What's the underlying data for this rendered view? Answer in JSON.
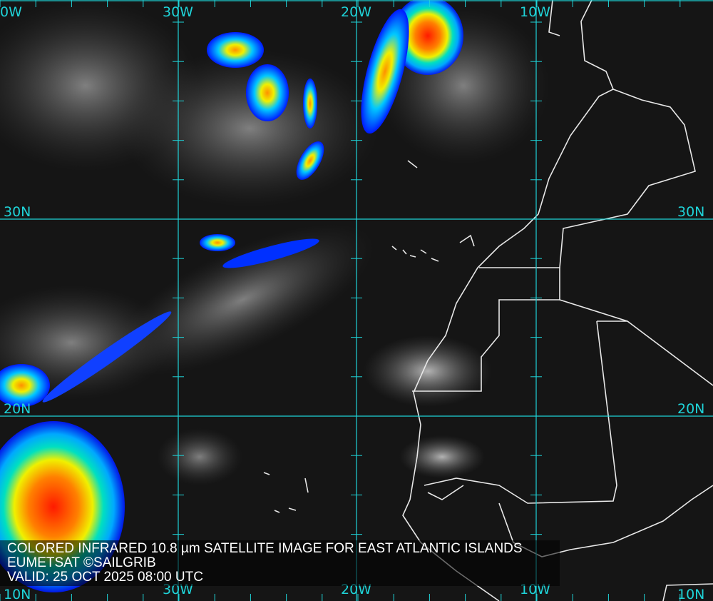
{
  "caption": {
    "title": "COLORED INFRARED 10.8 µm SATELLITE IMAGE FOR EAST ATLANTIC ISLANDS",
    "credit": "EUMETSAT ©SAILGRIB",
    "valid": "VALID:  25 OCT 2025 08:00 UTC"
  },
  "grid": {
    "color": "#1fd3d8",
    "top_labels": [
      "0W",
      "30W",
      "20W",
      "10W"
    ],
    "bottom_labels": [
      "30W",
      "20W",
      "10W"
    ],
    "left_labels": [
      "30N",
      "20N",
      "10N"
    ],
    "right_labels": [
      "30N",
      "20N",
      "10N"
    ]
  },
  "layers": {
    "background": "infrared-satellite",
    "coastline_color": "#e8e8e8",
    "cloud_colors": [
      "#0018ff",
      "#00a8ff",
      "#00e0c0",
      "#f0f000",
      "#ff8000",
      "#ff1a00"
    ]
  }
}
